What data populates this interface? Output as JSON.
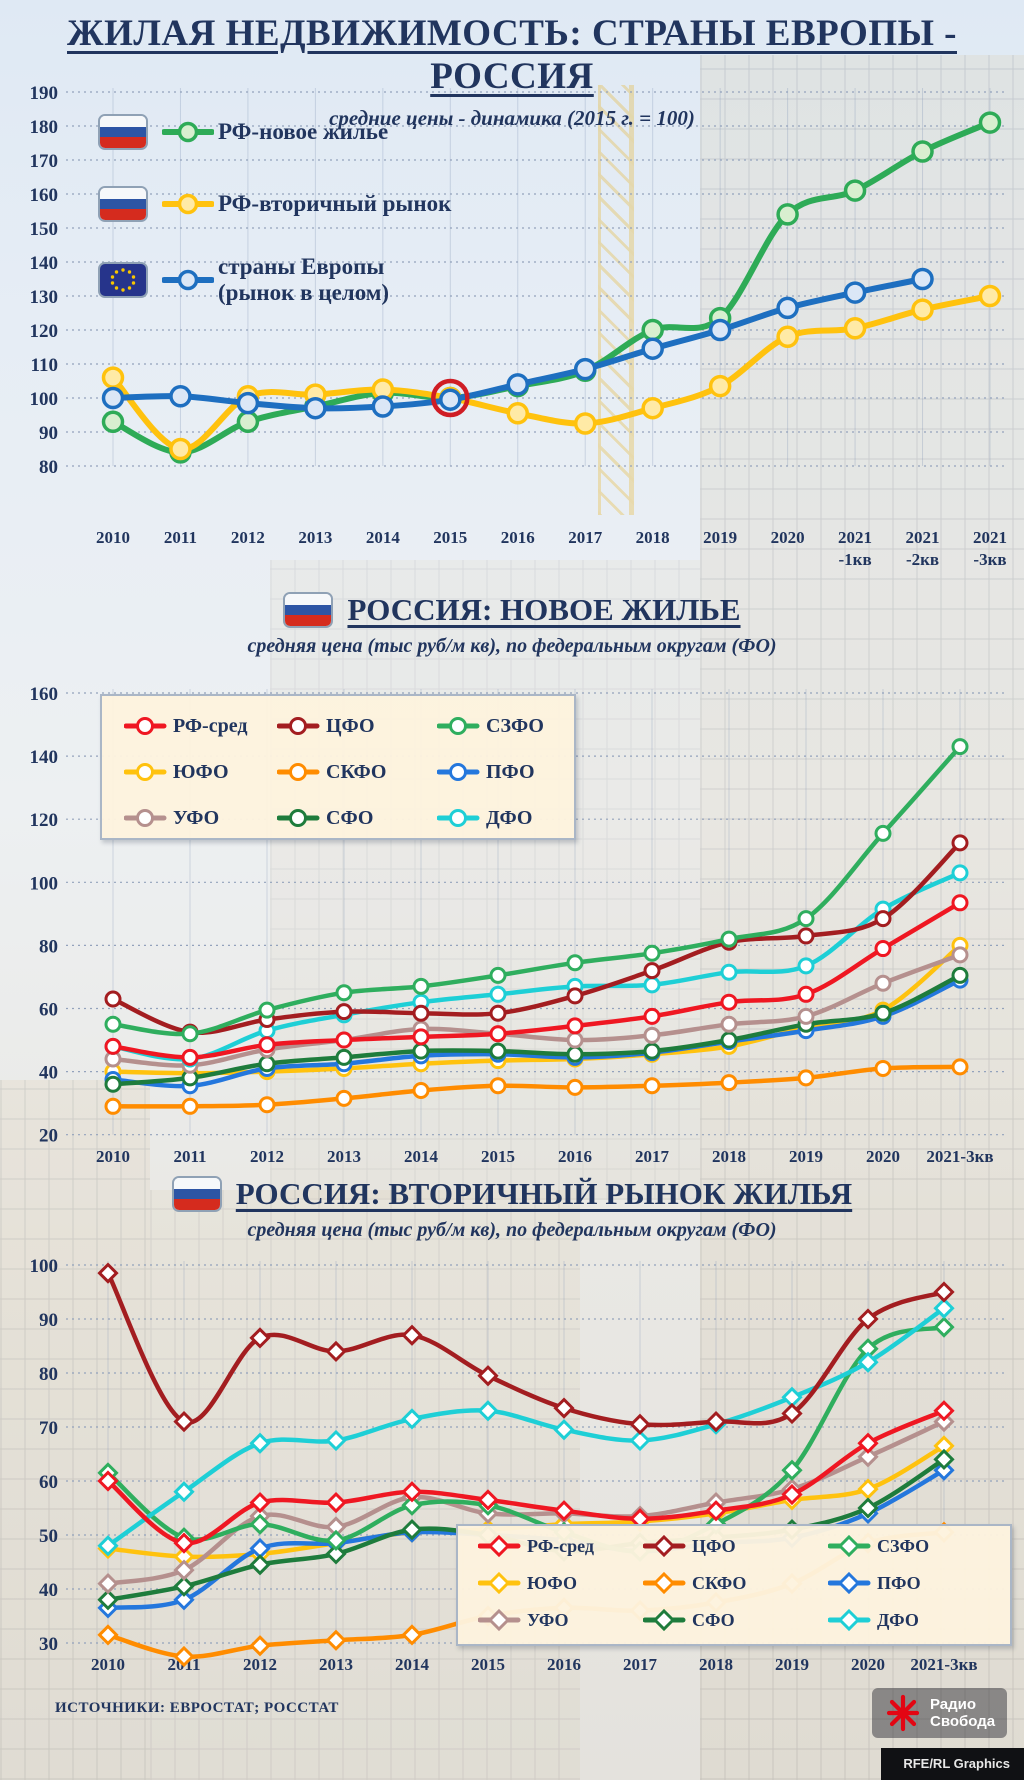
{
  "page_title": "ЖИЛАЯ НЕДВИЖИМОСТЬ: СТРАНЫ ЕВРОПЫ - РОССИЯ",
  "page_subtitle": "средние цены - динамика (2015 г. = 100)",
  "colors": {
    "title_navy": "#21355e",
    "grid": "#93a2bc",
    "annotation_ring": "#cf1d24",
    "legend_bg": "#fdf3de",
    "rf_new_green": "#2eab57",
    "rf_secondary_yellow": "#ffc20e",
    "europe_blue": "#1e6fc0",
    "rf_avg_red": "#ef1722",
    "cfo_darkred": "#a31d20",
    "szfo_green": "#2fae5e",
    "yufo_gold": "#ffc20e",
    "skfo_orange": "#ff8c00",
    "pfo_blue": "#2477dd",
    "ufo_taupe": "#b5908e",
    "sfo_darkgreen": "#1e7c3c",
    "dfo_cyan": "#1ecfd6"
  },
  "chart_data": [
    {
      "type": "line",
      "title": "ЖИЛАЯ НЕДВИЖИМОСТЬ: СТРАНЫ ЕВРОПЫ - РОССИЯ",
      "subtitle": "средние цены - динамика (2015 г. = 100)",
      "ylim": [
        80,
        190
      ],
      "ytick": 10,
      "grid": true,
      "legend_position": "top-left",
      "x_labels": [
        "2010",
        "2011",
        "2012",
        "2013",
        "2014",
        "2015",
        "2016",
        "2017",
        "2018",
        "2019",
        "2020",
        "2021\n-1кв",
        "2021\n-2кв",
        "2021\n-3кв"
      ],
      "annotation": {
        "x_index": 5,
        "value": 100,
        "meaning": "база: 2015 = 100"
      },
      "series": [
        {
          "name": "РФ-новое жилье",
          "flag": "ru",
          "color": "#2eab57",
          "marker_fill": "#d8efcf",
          "values": [
            93,
            84,
            93,
            97.5,
            101.5,
            100,
            103.5,
            108,
            120,
            123.5,
            154,
            161,
            172.5,
            181
          ]
        },
        {
          "name": "РФ-вторичный рынок",
          "flag": "ru",
          "color": "#ffc20e",
          "marker_fill": "#ffeaa6",
          "values": [
            106,
            85,
            100.5,
            101,
            102.5,
            100,
            95.5,
            92.5,
            97,
            103.5,
            118,
            120.5,
            126,
            130
          ]
        },
        {
          "name": "страны Европы\n(рынок в целом)",
          "flag": "eu",
          "color": "#1e6fc0",
          "marker_fill": "#dbe7f6",
          "values": [
            100,
            100.5,
            98.5,
            97,
            97.5,
            99.5,
            104,
            108.5,
            114.5,
            120,
            126.5,
            131,
            135,
            null
          ]
        }
      ]
    },
    {
      "type": "line",
      "title": "РОССИЯ: НОВОЕ ЖИЛЬЕ",
      "subtitle": "средняя цена (тыс руб/м кв), по федеральным округам (ФО)",
      "ylim": [
        20,
        160
      ],
      "ytick": 20,
      "grid": true,
      "legend_position": "top-left-box",
      "x_labels": [
        "2010",
        "2011",
        "2012",
        "2013",
        "2014",
        "2015",
        "2016",
        "2017",
        "2018",
        "2019",
        "2020",
        "2021-3кв"
      ],
      "series": [
        {
          "name": "РФ-сред",
          "color": "#ef1722",
          "values": [
            48,
            44.5,
            48.5,
            50,
            51,
            52,
            54.5,
            57.5,
            62,
            64.5,
            79,
            93.5
          ]
        },
        {
          "name": "ЦФО",
          "color": "#a31d20",
          "values": [
            63,
            52.5,
            56.5,
            59,
            58.5,
            58.5,
            64,
            72,
            81,
            83,
            88.5,
            112.5
          ]
        },
        {
          "name": "СЗФО",
          "color": "#2fae5e",
          "values": [
            55,
            52,
            59.5,
            65,
            67,
            70.5,
            74.5,
            77.5,
            82,
            88.5,
            115.5,
            143
          ]
        },
        {
          "name": "ЮФО",
          "color": "#ffc20e",
          "values": [
            40,
            39.5,
            40,
            41,
            42.5,
            43.5,
            44,
            45.5,
            48,
            54,
            59.5,
            80
          ]
        },
        {
          "name": "СКФО",
          "color": "#ff8c00",
          "values": [
            29,
            29,
            29.5,
            31.5,
            34,
            35.5,
            35,
            35.5,
            36.5,
            38,
            41,
            41.5
          ]
        },
        {
          "name": "ПФО",
          "color": "#2477dd",
          "values": [
            37.5,
            35.5,
            41,
            42.5,
            45,
            45.5,
            44.5,
            46,
            49.5,
            53,
            57.5,
            69
          ]
        },
        {
          "name": "УФО",
          "color": "#b5908e",
          "values": [
            44,
            42,
            47,
            50,
            53.5,
            52,
            50,
            51.5,
            55,
            57.5,
            68,
            77
          ]
        },
        {
          "name": "СФО",
          "color": "#1e7c3c",
          "values": [
            36,
            38,
            42.5,
            44.5,
            46.5,
            46.5,
            45.5,
            46.5,
            50,
            55,
            58.5,
            70.5
          ]
        },
        {
          "name": "ДФО",
          "color": "#1ecfd6",
          "values": [
            48,
            44,
            53,
            58,
            62,
            64.5,
            67,
            67.5,
            71.5,
            73.5,
            91.5,
            103
          ]
        }
      ]
    },
    {
      "type": "line",
      "title": "РОССИЯ: ВТОРИЧНЫЙ РЫНОК ЖИЛЬЯ",
      "subtitle": "средняя цена (тыс руб/м кв), по федеральным округам (ФО)",
      "ylim": [
        30,
        100
      ],
      "ytick": 10,
      "grid": true,
      "legend_position": "bottom-right-box",
      "marker": "diamond",
      "x_labels": [
        "2010",
        "2011",
        "2012",
        "2013",
        "2014",
        "2015",
        "2016",
        "2017",
        "2018",
        "2019",
        "2020",
        "2021-3кв"
      ],
      "series": [
        {
          "name": "РФ-сред",
          "color": "#ef1722",
          "values": [
            60,
            48.5,
            56,
            56,
            58,
            56.5,
            54.5,
            53,
            54.5,
            57.5,
            67,
            73
          ]
        },
        {
          "name": "ЦФО",
          "color": "#a31d20",
          "values": [
            98.5,
            71,
            86.5,
            84,
            87,
            79.5,
            73.5,
            70.5,
            71,
            72.5,
            90,
            95
          ]
        },
        {
          "name": "СЗФО",
          "color": "#2fae5e",
          "values": [
            61.5,
            49.5,
            52,
            49,
            55.5,
            55.5,
            50.5,
            47,
            52,
            62,
            84.5,
            88.5
          ]
        },
        {
          "name": "ЮФО",
          "color": "#ffc20e",
          "values": [
            47.5,
            46,
            46.5,
            48.5,
            50.5,
            51,
            52,
            52.5,
            54,
            56.5,
            58.5,
            66.5
          ]
        },
        {
          "name": "СКФО",
          "color": "#ff8c00",
          "values": [
            31.5,
            27.5,
            29.5,
            30.5,
            31.5,
            35,
            36.5,
            36,
            37.5,
            41,
            48.5,
            50.5
          ]
        },
        {
          "name": "ПФО",
          "color": "#2477dd",
          "values": [
            36.5,
            38,
            47.5,
            48.5,
            50.5,
            50,
            49,
            47,
            48.5,
            49.5,
            54,
            62
          ]
        },
        {
          "name": "УФО",
          "color": "#b5908e",
          "values": [
            41,
            43.5,
            53.5,
            51.5,
            57,
            54,
            54,
            53.5,
            56,
            58.5,
            64.5,
            71
          ]
        },
        {
          "name": "СФО",
          "color": "#1e7c3c",
          "values": [
            38,
            40.5,
            44.5,
            46.5,
            51,
            50,
            47,
            48.5,
            49.5,
            51,
            55,
            64
          ]
        },
        {
          "name": "ДФО",
          "color": "#1ecfd6",
          "values": [
            48,
            58,
            67,
            67.5,
            71.5,
            73,
            69.5,
            67.5,
            70.5,
            75.5,
            82,
            92
          ]
        }
      ]
    }
  ],
  "footer": {
    "sources": "ИСТОЧНИКИ: ЕВРОСТАТ; РОССТАТ",
    "logo_line1": "Радио",
    "logo_line2": "Свобода",
    "credit": "RFE/RL Graphics"
  }
}
